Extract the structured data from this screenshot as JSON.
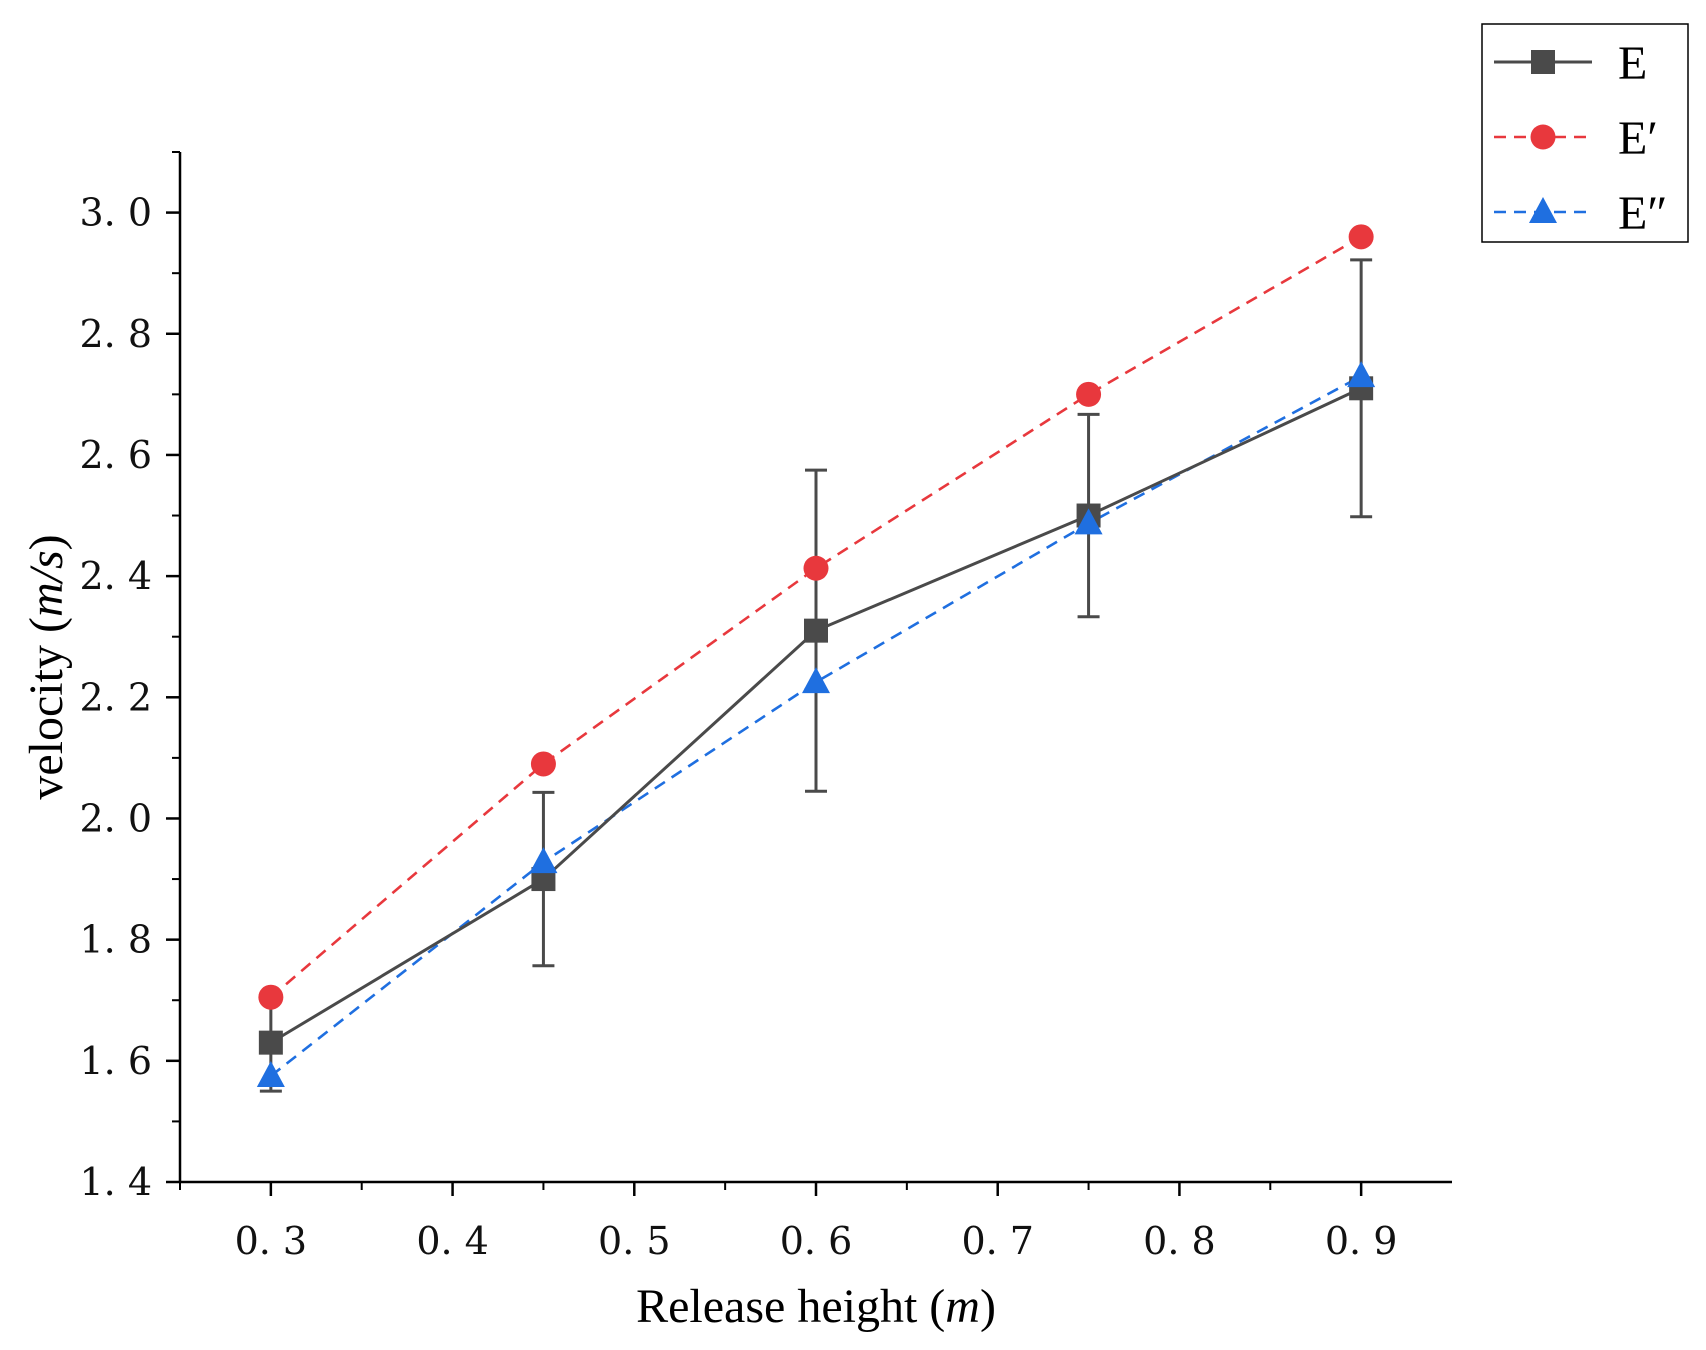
{
  "chart_data": {
    "type": "line",
    "title": "",
    "xlabel_text": "Release height (",
    "xlabel_unit": "m",
    "xlabel_close": ")",
    "ylabel_text": "velocity (",
    "ylabel_unit": "m/s",
    "ylabel_close": ")",
    "x": [
      0.3,
      0.45,
      0.6,
      0.75,
      0.9
    ],
    "xlim": [
      0.25,
      0.95
    ],
    "ylim": [
      1.4,
      3.1
    ],
    "xticks": [
      0.3,
      0.4,
      0.5,
      0.6,
      0.7,
      0.8,
      0.9
    ],
    "xtick_labels": [
      "0. 3",
      "0. 4",
      "0. 5",
      "0. 6",
      "0. 7",
      "0. 8",
      "0. 9"
    ],
    "yticks": [
      1.4,
      1.6,
      1.8,
      2.0,
      2.2,
      2.4,
      2.6,
      2.8,
      3.0
    ],
    "ytick_labels": [
      "1. 4",
      "1. 6",
      "1. 8",
      "2. 0",
      "2. 2",
      "2. 4",
      "2. 6",
      "2. 8",
      "3. 0"
    ],
    "legend_position": "top-right",
    "series": [
      {
        "name": "E",
        "color": "#4a4a4a",
        "marker": "square",
        "line_style": "solid",
        "values": [
          1.63,
          1.9,
          2.31,
          2.5,
          2.71
        ],
        "error_lower": [
          1.55,
          1.757,
          2.045,
          2.333,
          2.498
        ],
        "error_upper": [
          1.71,
          2.043,
          2.575,
          2.667,
          2.922
        ]
      },
      {
        "name": "E′",
        "color": "#e8383d",
        "marker": "circle",
        "line_style": "dashed",
        "values": [
          1.705,
          2.09,
          2.413,
          2.7,
          2.96
        ]
      },
      {
        "name": "E″",
        "color": "#1f6fe0",
        "marker": "triangle",
        "line_style": "dashed",
        "values": [
          1.575,
          1.928,
          2.225,
          2.487,
          2.73
        ]
      }
    ]
  }
}
